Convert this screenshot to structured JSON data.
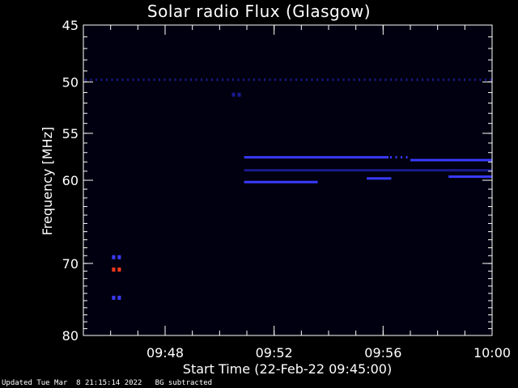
{
  "chart_data": {
    "type": "heatmap",
    "title": "Solar radio Flux (Glasgow)",
    "xlabel": "Start Time (22-Feb-22 09:45:00)",
    "ylabel": "Frequency [MHz]",
    "x_range_minutes": [
      0,
      15
    ],
    "x_ticks": [
      {
        "minute": 3,
        "label": "09:48"
      },
      {
        "minute": 7,
        "label": "09:52"
      },
      {
        "minute": 11,
        "label": "09:56"
      },
      {
        "minute": 15,
        "label": "10:00"
      }
    ],
    "ylim": [
      45,
      80
    ],
    "y_ticks": [
      45,
      50,
      55,
      60,
      70,
      80
    ],
    "y_axis_reversed": true,
    "features": [
      {
        "kind": "band",
        "freq_mhz": 49.8,
        "x_start_min": 0,
        "x_end_min": 15,
        "intensity": "low",
        "dotted": true
      },
      {
        "kind": "band",
        "freq_mhz": 57.5,
        "x_start_min": 5.9,
        "x_end_min": 11.2,
        "intensity": "medium",
        "dotted": false
      },
      {
        "kind": "band",
        "freq_mhz": 57.5,
        "x_start_min": 11.2,
        "x_end_min": 12.0,
        "intensity": "medium",
        "dotted": true
      },
      {
        "kind": "band",
        "freq_mhz": 57.8,
        "x_start_min": 12.0,
        "x_end_min": 15,
        "intensity": "medium",
        "dotted": false
      },
      {
        "kind": "band",
        "freq_mhz": 58.9,
        "x_start_min": 5.9,
        "x_end_min": 15,
        "intensity": "low",
        "dotted": false
      },
      {
        "kind": "band",
        "freq_mhz": 60.2,
        "x_start_min": 5.9,
        "x_end_min": 8.6,
        "intensity": "medium",
        "dotted": false
      },
      {
        "kind": "band",
        "freq_mhz": 59.8,
        "x_start_min": 10.4,
        "x_end_min": 11.3,
        "intensity": "medium",
        "dotted": false
      },
      {
        "kind": "band",
        "freq_mhz": 59.6,
        "x_start_min": 13.4,
        "x_end_min": 15,
        "intensity": "medium",
        "dotted": false
      },
      {
        "kind": "point",
        "freq_mhz": 51.2,
        "minute": 5.6,
        "intensity": "low"
      },
      {
        "kind": "point",
        "freq_mhz": 69.2,
        "minute": 1.2,
        "intensity": "high"
      },
      {
        "kind": "point",
        "freq_mhz": 70.8,
        "minute": 1.2,
        "intensity": "max"
      },
      {
        "kind": "point",
        "freq_mhz": 74.6,
        "minute": 1.2,
        "intensity": "high"
      }
    ],
    "colormap": {
      "background": "#000010",
      "low": "#1a1a8c",
      "medium": "#3a3aff",
      "high": "#3b3bff",
      "max": "#ff3a1a"
    }
  },
  "footer": {
    "updated_text": "Updated Tue Mar  8 21:15:14 2022",
    "note": "BG subtracted"
  }
}
